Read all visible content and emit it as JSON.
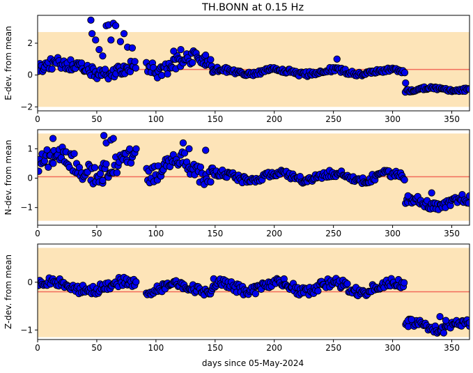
{
  "figure": {
    "title": "TH.BONN at 0.15 Hz",
    "xlabel": "days since 05-May-2024"
  },
  "colors": {
    "band": "#fde4b8",
    "reference_line": "#f26b5b",
    "marker_fill": "#0000ee",
    "marker_edge": "#000000"
  },
  "chart_data": [
    {
      "type": "scatter",
      "ylabel": "E-dev. from mean",
      "xlim": [
        0,
        365
      ],
      "ylim": [
        -2.25,
        3.75
      ],
      "xticks": [
        0,
        50,
        100,
        150,
        200,
        250,
        300,
        350
      ],
      "yticks": [
        -2,
        0,
        2
      ],
      "band": [
        -2.0,
        2.7
      ],
      "reference": 0.35,
      "segments": [
        {
          "x0": 0,
          "x1": 83,
          "base": 0.4,
          "amp": 0.35,
          "freq": 0.7
        },
        {
          "x0": 92,
          "x1": 148,
          "base": 0.7,
          "amp": 0.45,
          "freq": 0.9
        },
        {
          "x0": 148,
          "x1": 310,
          "base": 0.2,
          "amp": 0.15,
          "freq": 1.1
        },
        {
          "x0": 311,
          "x1": 365,
          "base": -0.9,
          "amp": 0.1,
          "freq": 1.3
        }
      ],
      "extra_points": [
        [
          45,
          3.45
        ],
        [
          46,
          2.6
        ],
        [
          49,
          2.2
        ],
        [
          58,
          3.1
        ],
        [
          60,
          3.15
        ],
        [
          62,
          2.2
        ],
        [
          64,
          3.25
        ],
        [
          66,
          3.1
        ],
        [
          70,
          2.1
        ],
        [
          73,
          2.6
        ],
        [
          52,
          1.6
        ],
        [
          55,
          1.2
        ],
        [
          76,
          1.75
        ],
        [
          80,
          1.7
        ],
        [
          115,
          1.5
        ],
        [
          121,
          1.6
        ],
        [
          142,
          1.25
        ],
        [
          253,
          1.0
        ],
        [
          311,
          -0.5
        ]
      ]
    },
    {
      "type": "scatter",
      "ylabel": "N-dev. from mean",
      "xlim": [
        0,
        365
      ],
      "ylim": [
        -1.6,
        1.65
      ],
      "xticks": [
        0,
        50,
        100,
        150,
        200,
        250,
        300,
        350
      ],
      "yticks": [
        -1,
        0,
        1
      ],
      "band": [
        -1.45,
        1.52
      ],
      "reference": 0.05,
      "segments": [
        {
          "x0": 0,
          "x1": 83,
          "base": 0.45,
          "amp": 0.35,
          "freq": 0.8
        },
        {
          "x0": 92,
          "x1": 148,
          "base": 0.35,
          "amp": 0.3,
          "freq": 1.0
        },
        {
          "x0": 148,
          "x1": 310,
          "base": 0.05,
          "amp": 0.12,
          "freq": 1.1
        },
        {
          "x0": 311,
          "x1": 365,
          "base": -0.85,
          "amp": 0.15,
          "freq": 1.2
        }
      ],
      "extra_points": [
        [
          13,
          1.35
        ],
        [
          56,
          1.45
        ],
        [
          58,
          1.2
        ],
        [
          62,
          1.3
        ],
        [
          64,
          1.35
        ],
        [
          123,
          1.2
        ],
        [
          128,
          1.0
        ],
        [
          142,
          0.95
        ],
        [
          55,
          -0.08
        ],
        [
          313,
          -0.6
        ],
        [
          333,
          -0.5
        ]
      ]
    },
    {
      "type": "scatter",
      "ylabel": "Z-dev. from mean",
      "xlim": [
        0,
        365
      ],
      "ylim": [
        -1.2,
        0.8
      ],
      "xticks": [
        0,
        50,
        100,
        150,
        200,
        250,
        300,
        350
      ],
      "yticks": [
        -1,
        0
      ],
      "band": [
        -1.15,
        0.72
      ],
      "reference": -0.2,
      "segments": [
        {
          "x0": 0,
          "x1": 83,
          "base": -0.08,
          "amp": 0.1,
          "freq": 0.9
        },
        {
          "x0": 92,
          "x1": 148,
          "base": -0.12,
          "amp": 0.08,
          "freq": 1.0
        },
        {
          "x0": 148,
          "x1": 310,
          "base": -0.1,
          "amp": 0.1,
          "freq": 1.1
        },
        {
          "x0": 311,
          "x1": 365,
          "base": -0.92,
          "amp": 0.08,
          "freq": 1.2
        }
      ],
      "extra_points": [
        [
          313,
          -0.8
        ],
        [
          316,
          -0.78
        ],
        [
          340,
          -0.72
        ],
        [
          345,
          -0.8
        ],
        [
          365,
          -0.85
        ]
      ]
    }
  ]
}
